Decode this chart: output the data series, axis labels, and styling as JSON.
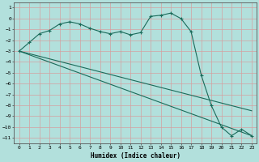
{
  "xlabel": "Humidex (Indice chaleur)",
  "ylabel": "",
  "bg_color": "#b2e0dc",
  "grid_color": "#d4a0a0",
  "line_color": "#1a6b5a",
  "xlim": [
    -0.5,
    23.5
  ],
  "ylim": [
    -11.5,
    1.5
  ],
  "yticks": [
    1,
    0,
    -1,
    -2,
    -3,
    -4,
    -5,
    -6,
    -7,
    -8,
    -9,
    -10,
    -11
  ],
  "xticks": [
    0,
    1,
    2,
    3,
    4,
    5,
    6,
    7,
    8,
    9,
    10,
    11,
    12,
    13,
    14,
    15,
    16,
    17,
    18,
    19,
    20,
    21,
    22,
    23
  ],
  "series1_x": [
    0,
    1,
    2,
    3,
    4,
    5,
    6,
    7,
    8,
    9,
    10,
    11,
    12,
    13,
    14,
    15,
    16,
    17,
    18,
    19,
    20,
    21,
    22,
    23
  ],
  "series1_y": [
    -3.0,
    -2.2,
    -1.4,
    -1.1,
    -0.5,
    -0.3,
    -0.5,
    -0.9,
    -1.2,
    -1.4,
    -1.2,
    -1.5,
    -1.3,
    0.2,
    0.3,
    0.5,
    0.0,
    -1.2,
    -5.2,
    -8.0,
    -10.0,
    -10.8,
    -10.2,
    -10.8
  ],
  "series2_x": [
    0,
    23
  ],
  "series2_y": [
    -3.0,
    -8.5
  ],
  "series3_x": [
    0,
    23
  ],
  "series3_y": [
    -3.0,
    -10.8
  ]
}
